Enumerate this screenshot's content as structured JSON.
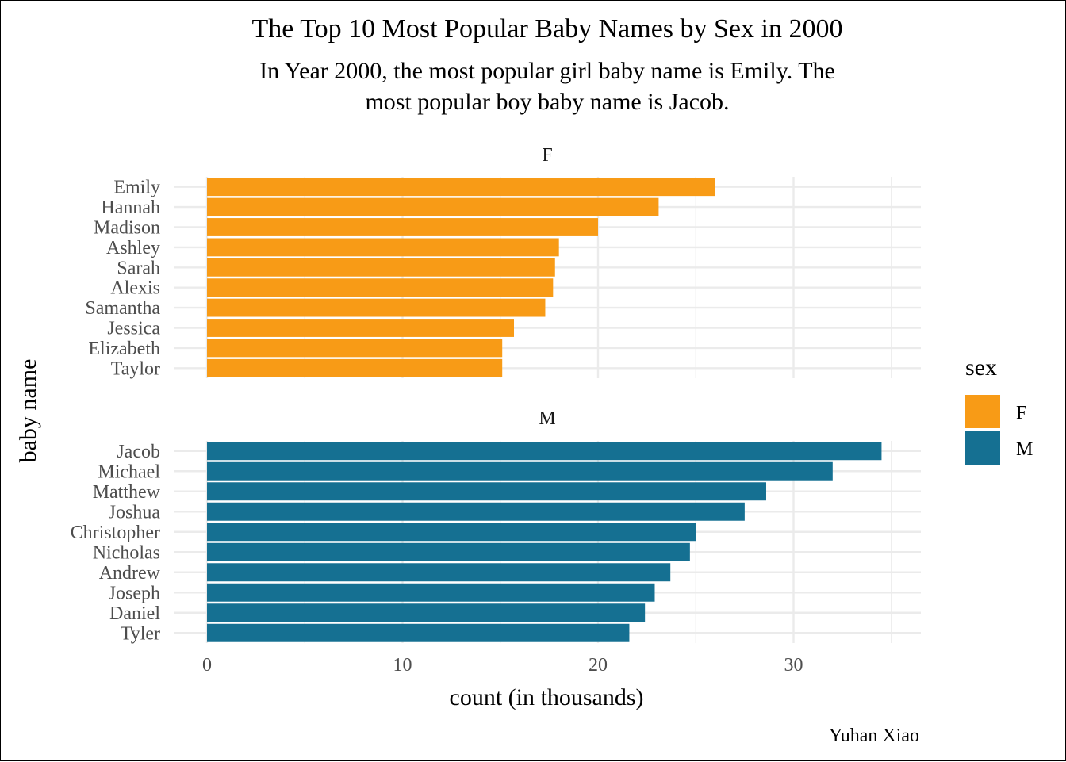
{
  "chart_data": {
    "type": "bar",
    "orientation": "horizontal",
    "title": "The Top 10 Most Popular Baby Names by Sex in 2000",
    "subtitle_lines": [
      "In Year 2000, the most popular girl baby name is Emily. The",
      "most popular boy baby name is Jacob."
    ],
    "xlabel": "count (in thousands)",
    "ylabel": "baby name",
    "caption": "Yuhan Xiao",
    "xlim": [
      0,
      36.1
    ],
    "x_ticks": [
      0,
      10,
      20,
      30
    ],
    "grid": true,
    "legend": {
      "title": "sex",
      "position": "right",
      "entries": [
        {
          "label": "F",
          "color": "#f89b16"
        },
        {
          "label": "M",
          "color": "#157092"
        }
      ]
    },
    "facets": [
      {
        "label": "F",
        "color": "#f89b16",
        "categories": [
          "Emily",
          "Hannah",
          "Madison",
          "Ashley",
          "Sarah",
          "Alexis",
          "Samantha",
          "Jessica",
          "Elizabeth",
          "Taylor"
        ],
        "values": [
          26.0,
          23.1,
          20.0,
          18.0,
          17.8,
          17.7,
          17.3,
          15.7,
          15.1,
          15.1
        ]
      },
      {
        "label": "M",
        "color": "#157092",
        "categories": [
          "Jacob",
          "Michael",
          "Matthew",
          "Joshua",
          "Christopher",
          "Nicholas",
          "Andrew",
          "Joseph",
          "Daniel",
          "Tyler"
        ],
        "values": [
          34.5,
          32.0,
          28.6,
          27.5,
          25.0,
          24.7,
          23.7,
          22.9,
          22.4,
          21.6
        ]
      }
    ]
  }
}
